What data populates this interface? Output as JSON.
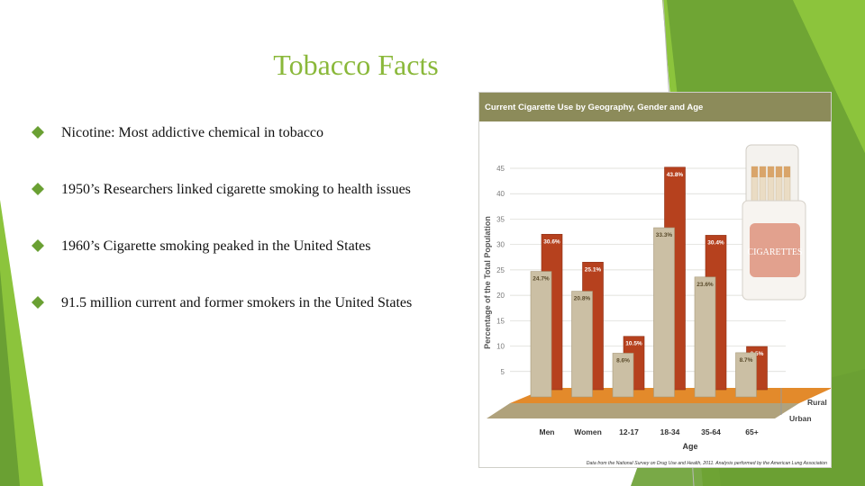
{
  "slide": {
    "title": "Tobacco Facts",
    "bullets": [
      "Nicotine: Most addictive chemical in tobacco",
      "1950’s Researchers linked cigarette smoking to health issues",
      "1960’s Cigarette smoking peaked in the United States",
      "91.5 million current and former smokers in the United States"
    ],
    "bullet_icon": "diamond-bullet-icon",
    "accent_color": "#8ab83a"
  },
  "chart_data": {
    "type": "bar",
    "title": "Current Cigarette Use by Geography, Gender and Age",
    "ylabel": "Percentage of the Total Population",
    "xlabel": "Age",
    "ylim": [
      0,
      45
    ],
    "yticks": [
      5,
      10,
      15,
      20,
      25,
      30,
      35,
      40,
      45
    ],
    "categories": [
      "Men",
      "Women",
      "12-17",
      "18-34",
      "35-64",
      "65+"
    ],
    "series": [
      {
        "name": "Urban",
        "color": "#cbbfa4",
        "values": [
          24.7,
          20.8,
          8.6,
          33.3,
          23.6,
          8.7
        ],
        "labels": [
          "24.7%",
          "20.8%",
          "8.6%",
          "33.3%",
          "23.6%",
          "8.7%"
        ]
      },
      {
        "name": "Rural",
        "color": "#b6411e",
        "values": [
          30.6,
          25.1,
          10.5,
          43.8,
          30.4,
          8.5
        ],
        "labels": [
          "30.6%",
          "25.1%",
          "10.5%",
          "43.8%",
          "30.4%",
          "8.5%"
        ]
      }
    ],
    "depth_labels": [
      "Rural",
      "Urban"
    ],
    "source": "Data from the National Survey on Drug Use and Health, 2011. Analysis performed by the American Lung Association",
    "header_color": "#8c8b5a",
    "picture": "cigarette-pack-image",
    "pack_text": "CIGARETTES"
  }
}
